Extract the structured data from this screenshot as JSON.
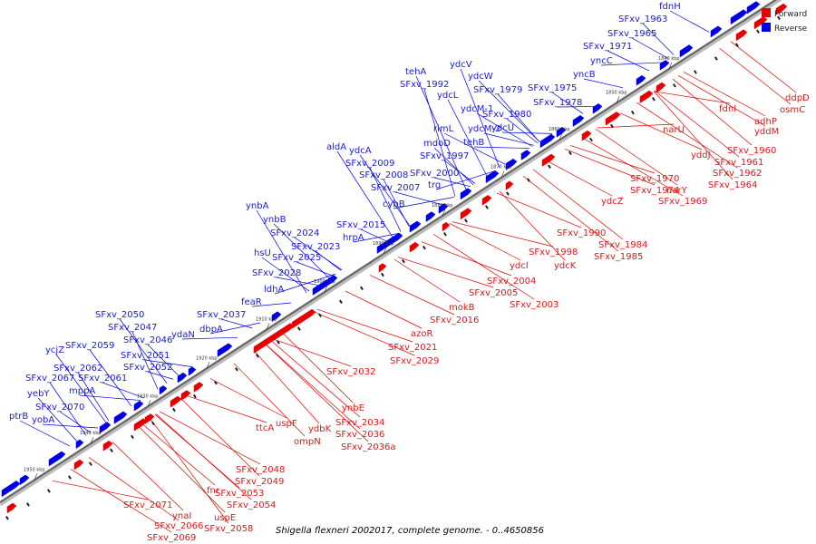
{
  "caption": "Shigella flexneri 2002017, complete genome. - 0..4650856",
  "legend": {
    "forward_label": "Forward",
    "reverse_label": "Reverse",
    "forward_color": "#e60000",
    "reverse_color": "#0000e6"
  },
  "axis": {
    "unit": "kbp",
    "ticks": [
      "1950 kbp",
      "1940 kbp",
      "1930 kbp",
      "1920 kbp",
      "1910 kbp",
      "1900 kbp",
      "1890 kbp",
      "1880 kbp",
      "1870 kbp",
      "1860 kbp",
      "1850 kbp",
      "1840 kbp"
    ]
  },
  "reverse_genes": [
    "fdnH",
    "SFxv_1963",
    "SFxv_1965",
    "SFxv_1971",
    "yncC",
    "yncB",
    "SFxv_1975",
    "SFxv_1978",
    "SFxv_1979",
    "ydcW",
    "ydcV",
    "SFxv_1980",
    "ydcU",
    "ydcM-2",
    "ydcM-1",
    "ydcL",
    "SFxv_1992",
    "tehA",
    "tehB",
    "rimL",
    "mdoD",
    "SFxv_1997",
    "SFxv_2000",
    "trg",
    "SFxv_2007",
    "SFxv_2008",
    "SFxv_2009",
    "ydcA",
    "aldA",
    "cybB",
    "SFxv_2015",
    "hrpA",
    "ynbA",
    "ynbB",
    "SFxv_2024",
    "SFxv_2023",
    "hsU",
    "SFxv_2025",
    "SFxv_2028",
    "ldhA",
    "feaR",
    "SFxv_2037",
    "dbpA",
    "ydaN",
    "SFxv_2050",
    "SFxv_2047",
    "SFxv_2046",
    "ycjZ",
    "SFxv_2059",
    "SFxv_2051",
    "SFxv_2052",
    "SFxv_2062",
    "SFxv_2067",
    "SFxv_2061",
    "mppA",
    "yebY",
    "SFxv_2070",
    "ptrB",
    "yobA"
  ],
  "forward_genes": [
    "ddpD",
    "osmC",
    "fdnI",
    "adhP",
    "yddM",
    "SFxv_1960",
    "SFxv_1961",
    "narU",
    "yddJ",
    "SFxv_1962",
    "SFxv_1964",
    "SFxv_1970",
    "SFxv_1974",
    "narY",
    "SFxv_1969",
    "ydcZ",
    "SFxv_1990",
    "SFxv_1984",
    "SFxv_1985",
    "SFxv_1998",
    "ydcK",
    "ydcI",
    "SFxv_2004",
    "SFxv_2005",
    "SFxv_2003",
    "mokB",
    "SFxv_2016",
    "azoR",
    "SFxv_2021",
    "SFxv_2029",
    "SFxv_2032",
    "ynbE",
    "SFxv_2034",
    "SFxv_2036",
    "SFxv_2036a",
    "ydbK",
    "ompN",
    "uspF",
    "ttcA",
    "SFxv_2048",
    "SFxv_2049",
    "SFxv_2053",
    "fnr",
    "SFxv_2054",
    "uspE",
    "SFxv_2058",
    "ynaI",
    "SFxv_2066",
    "SFxv_2071",
    "SFxv_2069"
  ]
}
